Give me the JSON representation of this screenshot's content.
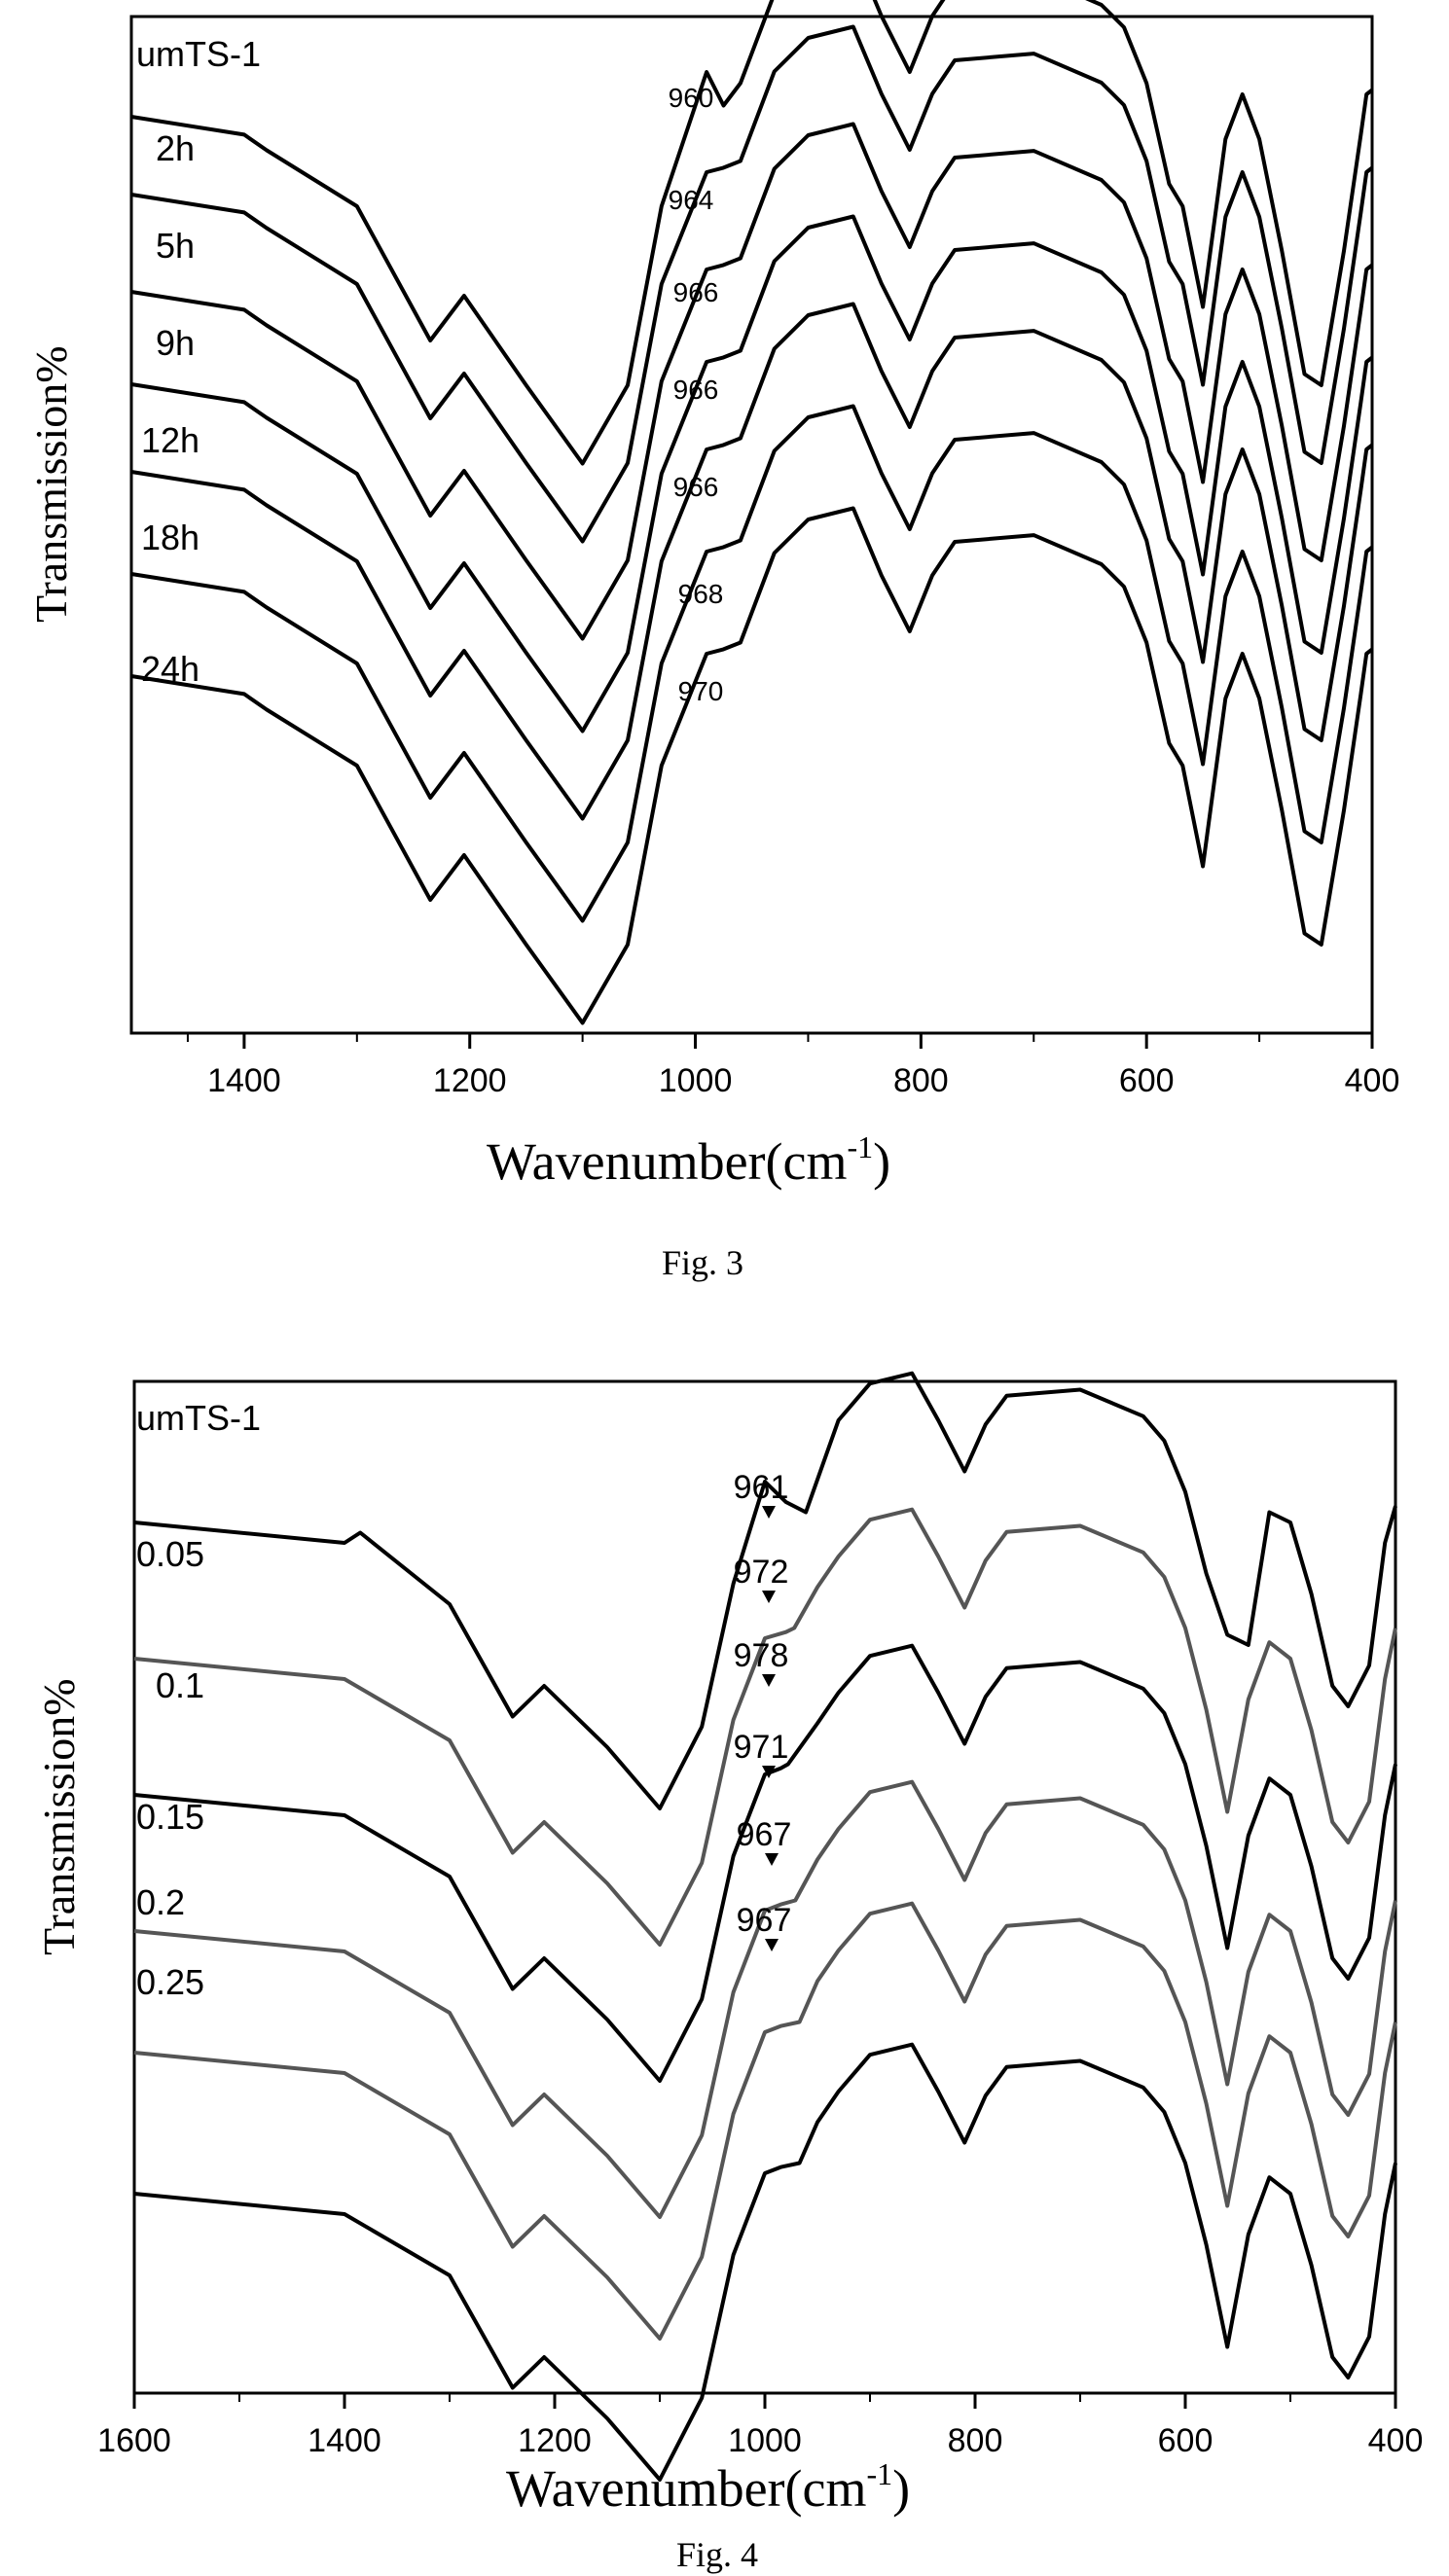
{
  "figures": [
    {
      "caption": "Fig. 3",
      "xlabel": "Wavenumber(cm",
      "xlabel_sup": "-1",
      "xlabel_close": ")",
      "ylabel": "Transmission%"
    },
    {
      "caption": "Fig. 4",
      "xlabel": "Wavenumber(cm",
      "xlabel_sup": "-1",
      "xlabel_close": ")",
      "ylabel": "Transmission%"
    }
  ],
  "chart_data": [
    {
      "type": "line",
      "title": "",
      "xlabel": "Wavenumber(cm-1)",
      "ylabel": "Transmission%",
      "xlim": [
        1500,
        400
      ],
      "x_reversed": true,
      "xticks": [
        "1400",
        "1200",
        "1000",
        "800",
        "600",
        "400"
      ],
      "grid": false,
      "line_color": "#000000",
      "series": [
        {
          "name": "umTS-1",
          "annotation": "960",
          "x": [
            1500,
            1400,
            1380,
            1300,
            1235,
            1205,
            1150,
            1100,
            1060,
            1030,
            990,
            975,
            960,
            930,
            900,
            860,
            835,
            810,
            790,
            770,
            700,
            640,
            620,
            600,
            580,
            568,
            550,
            530,
            515,
            500,
            480,
            460,
            445,
            425,
            410,
            405,
            400
          ],
          "y": [
            0.0,
            -0.8,
            -1.5,
            -4.0,
            -10.0,
            -8.0,
            -12.0,
            -15.5,
            -12.0,
            -4.0,
            2.0,
            0.5,
            1.5,
            5.5,
            7.0,
            7.5,
            4.5,
            2.0,
            4.5,
            6.0,
            6.3,
            5.0,
            4.0,
            1.5,
            -3.0,
            -4.0,
            -8.5,
            -1.0,
            1.0,
            -1.0,
            -6.0,
            -11.5,
            -12.0,
            -6.0,
            -0.8,
            1.0,
            1.2
          ]
        },
        {
          "name": "2h",
          "annotation": "964",
          "x": [
            1500,
            1400,
            1380,
            1300,
            1235,
            1205,
            1150,
            1100,
            1060,
            1030,
            990,
            975,
            960,
            930,
            900,
            860,
            835,
            810,
            790,
            770,
            700,
            640,
            620,
            600,
            580,
            568,
            550,
            530,
            515,
            500,
            480,
            460,
            445,
            425,
            410,
            405,
            400
          ],
          "y": [
            0.0,
            -0.8,
            -1.5,
            -4.0,
            -10.0,
            -8.0,
            -12.0,
            -15.5,
            -12.0,
            -4.0,
            1.0,
            1.2,
            1.5,
            5.5,
            7.0,
            7.5,
            4.5,
            2.0,
            4.5,
            6.0,
            6.3,
            5.0,
            4.0,
            1.5,
            -3.0,
            -4.0,
            -8.5,
            -1.0,
            1.0,
            -1.0,
            -6.0,
            -11.5,
            -12.0,
            -6.0,
            -0.8,
            1.0,
            1.2
          ]
        },
        {
          "name": "5h",
          "annotation": "966",
          "x": [
            1500,
            1400,
            1380,
            1300,
            1235,
            1205,
            1150,
            1100,
            1060,
            1030,
            990,
            975,
            960,
            930,
            900,
            860,
            835,
            810,
            790,
            770,
            700,
            640,
            620,
            600,
            580,
            568,
            550,
            530,
            515,
            500,
            480,
            460,
            445,
            425,
            410,
            405,
            400
          ],
          "y": [
            0.0,
            -0.8,
            -1.5,
            -4.0,
            -10.0,
            -8.0,
            -12.0,
            -15.5,
            -12.0,
            -4.0,
            1.0,
            1.2,
            1.5,
            5.5,
            7.0,
            7.5,
            4.5,
            2.0,
            4.5,
            6.0,
            6.3,
            5.0,
            4.0,
            1.5,
            -3.0,
            -4.0,
            -8.5,
            -1.0,
            1.0,
            -1.0,
            -6.0,
            -11.5,
            -12.0,
            -6.0,
            -0.8,
            1.0,
            1.2
          ]
        },
        {
          "name": "9h",
          "annotation": "966",
          "x": [
            1500,
            1400,
            1380,
            1300,
            1235,
            1205,
            1150,
            1100,
            1060,
            1030,
            990,
            975,
            960,
            930,
            900,
            860,
            835,
            810,
            790,
            770,
            700,
            640,
            620,
            600,
            580,
            568,
            550,
            530,
            515,
            500,
            480,
            460,
            445,
            425,
            410,
            405,
            400
          ],
          "y": [
            0.0,
            -0.8,
            -1.5,
            -4.0,
            -10.0,
            -8.0,
            -12.0,
            -15.5,
            -12.0,
            -4.0,
            1.0,
            1.2,
            1.5,
            5.5,
            7.0,
            7.5,
            4.5,
            2.0,
            4.5,
            6.0,
            6.3,
            5.0,
            4.0,
            1.5,
            -3.0,
            -4.0,
            -8.5,
            -1.0,
            1.0,
            -1.0,
            -6.0,
            -11.5,
            -12.0,
            -6.0,
            -0.8,
            1.0,
            1.2
          ]
        },
        {
          "name": "12h",
          "annotation": "966",
          "x": [
            1500,
            1400,
            1380,
            1300,
            1235,
            1205,
            1150,
            1100,
            1060,
            1030,
            990,
            975,
            960,
            930,
            900,
            860,
            835,
            810,
            790,
            770,
            700,
            640,
            620,
            600,
            580,
            568,
            550,
            530,
            515,
            500,
            480,
            460,
            445,
            425,
            410,
            405,
            400
          ],
          "y": [
            0.0,
            -0.8,
            -1.5,
            -4.0,
            -10.0,
            -8.0,
            -12.0,
            -15.5,
            -12.0,
            -4.0,
            1.0,
            1.2,
            1.5,
            5.5,
            7.0,
            7.5,
            4.5,
            2.0,
            4.5,
            6.0,
            6.3,
            5.0,
            4.0,
            1.5,
            -3.0,
            -4.0,
            -8.5,
            -1.0,
            1.0,
            -1.0,
            -6.0,
            -11.5,
            -12.0,
            -6.0,
            -0.8,
            1.0,
            1.2
          ]
        },
        {
          "name": "18h",
          "annotation": "968",
          "x": [
            1500,
            1400,
            1380,
            1300,
            1235,
            1205,
            1150,
            1100,
            1060,
            1030,
            990,
            975,
            960,
            930,
            900,
            860,
            835,
            810,
            790,
            770,
            700,
            640,
            620,
            600,
            580,
            568,
            550,
            530,
            515,
            500,
            480,
            460,
            445,
            425,
            410,
            405,
            400
          ],
          "y": [
            0.0,
            -0.8,
            -1.5,
            -4.0,
            -10.0,
            -8.0,
            -12.0,
            -15.5,
            -12.0,
            -4.0,
            1.0,
            1.2,
            1.5,
            5.5,
            7.0,
            7.5,
            4.5,
            2.0,
            4.5,
            6.0,
            6.3,
            5.0,
            4.0,
            1.5,
            -3.0,
            -4.0,
            -8.5,
            -1.0,
            1.0,
            -1.0,
            -6.0,
            -11.5,
            -12.0,
            -6.0,
            -0.8,
            1.0,
            1.2
          ]
        },
        {
          "name": "24h",
          "annotation": "970",
          "x": [
            1500,
            1400,
            1380,
            1300,
            1235,
            1205,
            1150,
            1100,
            1060,
            1030,
            990,
            975,
            960,
            930,
            900,
            860,
            835,
            810,
            790,
            770,
            700,
            640,
            620,
            600,
            580,
            568,
            550,
            530,
            515,
            500,
            480,
            460,
            445,
            425,
            410,
            405,
            400
          ],
          "y": [
            0.0,
            -0.8,
            -1.5,
            -4.0,
            -10.0,
            -8.0,
            -12.0,
            -15.5,
            -12.0,
            -4.0,
            1.0,
            1.2,
            1.5,
            5.5,
            7.0,
            7.5,
            4.5,
            2.0,
            4.5,
            6.0,
            6.3,
            5.0,
            4.0,
            1.5,
            -3.0,
            -4.0,
            -8.5,
            -1.0,
            1.0,
            -1.0,
            -6.0,
            -11.5,
            -12.0,
            -6.0,
            -0.8,
            1.0,
            1.2
          ]
        }
      ]
    },
    {
      "type": "line",
      "title": "",
      "xlabel": "Wavenumber(cm-1)",
      "ylabel": "Transmission%",
      "xlim": [
        1600,
        400
      ],
      "x_reversed": true,
      "xticks": [
        "1600",
        "1400",
        "1200",
        "1000",
        "800",
        "600",
        "400"
      ],
      "grid": false,
      "series": [
        {
          "name": "umTS-1",
          "annotation": "961",
          "color": "#000000",
          "x": [
            1600,
            1400,
            1385,
            1300,
            1240,
            1210,
            1150,
            1100,
            1060,
            1030,
            1000,
            980,
            961,
            930,
            900,
            860,
            835,
            810,
            790,
            770,
            700,
            640,
            620,
            600,
            580,
            560,
            540,
            520,
            500,
            480,
            460,
            445,
            425,
            410,
            400
          ],
          "y": [
            0.0,
            -1.0,
            -0.5,
            -4.0,
            -9.5,
            -8.0,
            -11.0,
            -14.0,
            -10.0,
            -3.0,
            2.0,
            1.0,
            0.5,
            5.0,
            6.8,
            7.3,
            5.0,
            2.5,
            4.8,
            6.2,
            6.5,
            5.2,
            4.0,
            1.5,
            -2.5,
            -5.5,
            -6.0,
            0.5,
            0.0,
            -3.5,
            -8.0,
            -9.0,
            -7.0,
            -1.0,
            0.8
          ]
        },
        {
          "name": "0.05",
          "annotation": "972",
          "color": "#555555",
          "x": [
            1600,
            1400,
            1300,
            1240,
            1210,
            1150,
            1100,
            1060,
            1030,
            1000,
            980,
            972,
            950,
            930,
            900,
            860,
            835,
            810,
            790,
            770,
            700,
            640,
            620,
            600,
            580,
            560,
            540,
            520,
            500,
            480,
            460,
            445,
            425,
            410,
            400
          ],
          "y": [
            0.0,
            -1.0,
            -4.0,
            -9.5,
            -8.0,
            -11.0,
            -14.0,
            -10.0,
            -3.0,
            1.0,
            1.3,
            1.5,
            3.5,
            5.0,
            6.8,
            7.3,
            5.0,
            2.5,
            4.8,
            6.2,
            6.5,
            5.2,
            4.0,
            1.5,
            -2.5,
            -7.5,
            -2.0,
            0.8,
            0.0,
            -3.5,
            -8.0,
            -9.0,
            -7.0,
            -1.0,
            1.5
          ]
        },
        {
          "name": "0.1",
          "annotation": "978",
          "color": "#000000",
          "x": [
            1600,
            1400,
            1300,
            1240,
            1210,
            1150,
            1100,
            1060,
            1030,
            1000,
            985,
            978,
            950,
            930,
            900,
            860,
            835,
            810,
            790,
            770,
            700,
            640,
            620,
            600,
            580,
            560,
            540,
            520,
            500,
            480,
            460,
            445,
            425,
            410,
            400
          ],
          "y": [
            0.0,
            -1.0,
            -4.0,
            -9.5,
            -8.0,
            -11.0,
            -14.0,
            -10.0,
            -3.0,
            1.0,
            1.3,
            1.5,
            3.5,
            5.0,
            6.8,
            7.3,
            5.0,
            2.5,
            4.8,
            6.2,
            6.5,
            5.2,
            4.0,
            1.5,
            -2.5,
            -7.5,
            -2.0,
            0.8,
            0.0,
            -3.5,
            -8.0,
            -9.0,
            -7.0,
            -1.0,
            1.5
          ]
        },
        {
          "name": "0.15",
          "annotation": "971",
          "color": "#555555",
          "x": [
            1600,
            1400,
            1300,
            1240,
            1210,
            1150,
            1100,
            1060,
            1030,
            1000,
            985,
            971,
            950,
            930,
            900,
            860,
            835,
            810,
            790,
            770,
            700,
            640,
            620,
            600,
            580,
            560,
            540,
            520,
            500,
            480,
            460,
            445,
            425,
            410,
            400
          ],
          "y": [
            0.0,
            -1.0,
            -4.0,
            -9.5,
            -8.0,
            -11.0,
            -14.0,
            -10.0,
            -3.0,
            1.0,
            1.3,
            1.5,
            3.5,
            5.0,
            6.8,
            7.3,
            5.0,
            2.5,
            4.8,
            6.2,
            6.5,
            5.2,
            4.0,
            1.5,
            -2.5,
            -7.5,
            -2.0,
            0.8,
            0.0,
            -3.5,
            -8.0,
            -9.0,
            -7.0,
            -1.0,
            1.5
          ]
        },
        {
          "name": "0.2",
          "annotation": "967",
          "color": "#555555",
          "x": [
            1600,
            1400,
            1300,
            1240,
            1210,
            1150,
            1100,
            1060,
            1030,
            1000,
            985,
            967,
            950,
            930,
            900,
            860,
            835,
            810,
            790,
            770,
            700,
            640,
            620,
            600,
            580,
            560,
            540,
            520,
            500,
            480,
            460,
            445,
            425,
            410,
            400
          ],
          "y": [
            0.0,
            -1.0,
            -4.0,
            -9.5,
            -8.0,
            -11.0,
            -14.0,
            -10.0,
            -3.0,
            1.0,
            1.3,
            1.5,
            3.5,
            5.0,
            6.8,
            7.3,
            5.0,
            2.5,
            4.8,
            6.2,
            6.5,
            5.2,
            4.0,
            1.5,
            -2.5,
            -7.5,
            -2.0,
            0.8,
            0.0,
            -3.5,
            -8.0,
            -9.0,
            -7.0,
            -1.0,
            1.5
          ]
        },
        {
          "name": "0.25",
          "annotation": "967",
          "color": "#000000",
          "x": [
            1600,
            1400,
            1300,
            1240,
            1210,
            1150,
            1100,
            1060,
            1030,
            1000,
            985,
            967,
            950,
            930,
            900,
            860,
            835,
            810,
            790,
            770,
            700,
            640,
            620,
            600,
            580,
            560,
            540,
            520,
            500,
            480,
            460,
            445,
            425,
            410,
            400
          ],
          "y": [
            0.0,
            -1.0,
            -4.0,
            -9.5,
            -8.0,
            -11.0,
            -14.0,
            -10.0,
            -3.0,
            1.0,
            1.3,
            1.5,
            3.5,
            5.0,
            6.8,
            7.3,
            5.0,
            2.5,
            4.8,
            6.2,
            6.5,
            5.2,
            4.0,
            1.5,
            -2.5,
            -7.5,
            -2.0,
            0.8,
            0.0,
            -3.5,
            -8.0,
            -9.0,
            -7.0,
            -1.0,
            1.5
          ]
        }
      ]
    }
  ]
}
